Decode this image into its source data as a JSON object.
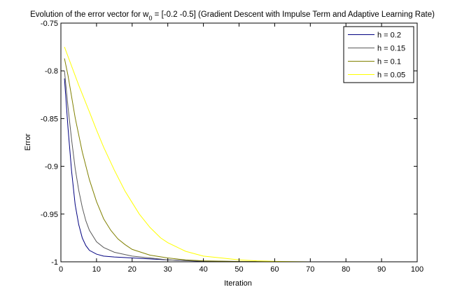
{
  "chart_data": {
    "type": "line",
    "title_prefix": "Evolution of the error vector for w",
    "title_sub": "0",
    "title_suffix": " = [-0.2 -0.5] (Gradient Descent with Impulse Term and Adaptive Learning Rate)",
    "xlabel": "Iteration",
    "ylabel": "Error",
    "xlim": [
      0,
      100
    ],
    "ylim": [
      -1,
      -0.75
    ],
    "xticks": [
      0,
      10,
      20,
      30,
      40,
      50,
      60,
      70,
      80,
      90,
      100
    ],
    "yticks": [
      -1,
      -0.95,
      -0.9,
      -0.85,
      -0.8,
      -0.75
    ],
    "grid": false,
    "legend_position": "top-right",
    "series": [
      {
        "name": "h = 0.2",
        "color": "#000080",
        "x": [
          1,
          2,
          3,
          4,
          5,
          6,
          7,
          8,
          10,
          12,
          15,
          20,
          25,
          30,
          40,
          50,
          60,
          70,
          80,
          90,
          100
        ],
        "y": [
          -0.808,
          -0.86,
          -0.905,
          -0.94,
          -0.961,
          -0.975,
          -0.983,
          -0.988,
          -0.992,
          -0.994,
          -0.995,
          -0.996,
          -0.997,
          -0.998,
          -0.9995,
          -0.9998,
          -1,
          -1,
          -1,
          -1,
          -1
        ]
      },
      {
        "name": "h = 0.15",
        "color": "#5a5a5a",
        "x": [
          1,
          2,
          3,
          4,
          5,
          6,
          7,
          8,
          10,
          12,
          15,
          20,
          25,
          30,
          40,
          50,
          60,
          70,
          80,
          90,
          100
        ],
        "y": [
          -0.8,
          -0.838,
          -0.872,
          -0.902,
          -0.925,
          -0.943,
          -0.957,
          -0.967,
          -0.979,
          -0.985,
          -0.99,
          -0.994,
          -0.996,
          -0.998,
          -0.9993,
          -0.9997,
          -1,
          -1,
          -1,
          -1,
          -1
        ]
      },
      {
        "name": "h = 0.1",
        "color": "#808000",
        "x": [
          1,
          2,
          4,
          6,
          8,
          10,
          12,
          14,
          16,
          18,
          20,
          25,
          30,
          35,
          40,
          50,
          60,
          70,
          80,
          90,
          100
        ],
        "y": [
          -0.787,
          -0.805,
          -0.849,
          -0.885,
          -0.914,
          -0.937,
          -0.955,
          -0.967,
          -0.976,
          -0.982,
          -0.987,
          -0.993,
          -0.996,
          -0.998,
          -0.999,
          -0.9996,
          -1,
          -1,
          -1,
          -1,
          -1
        ]
      },
      {
        "name": "h = 0.05",
        "color": "#ffff00",
        "x": [
          1,
          3,
          5,
          8,
          10,
          12,
          15,
          18,
          20,
          22,
          25,
          28,
          30,
          35,
          40,
          45,
          50,
          55,
          60,
          70,
          80,
          90,
          100
        ],
        "y": [
          -0.775,
          -0.795,
          -0.815,
          -0.843,
          -0.862,
          -0.88,
          -0.904,
          -0.926,
          -0.938,
          -0.95,
          -0.964,
          -0.975,
          -0.98,
          -0.989,
          -0.994,
          -0.996,
          -0.998,
          -0.999,
          -0.9995,
          -1,
          -1,
          -1,
          -1
        ]
      }
    ]
  }
}
